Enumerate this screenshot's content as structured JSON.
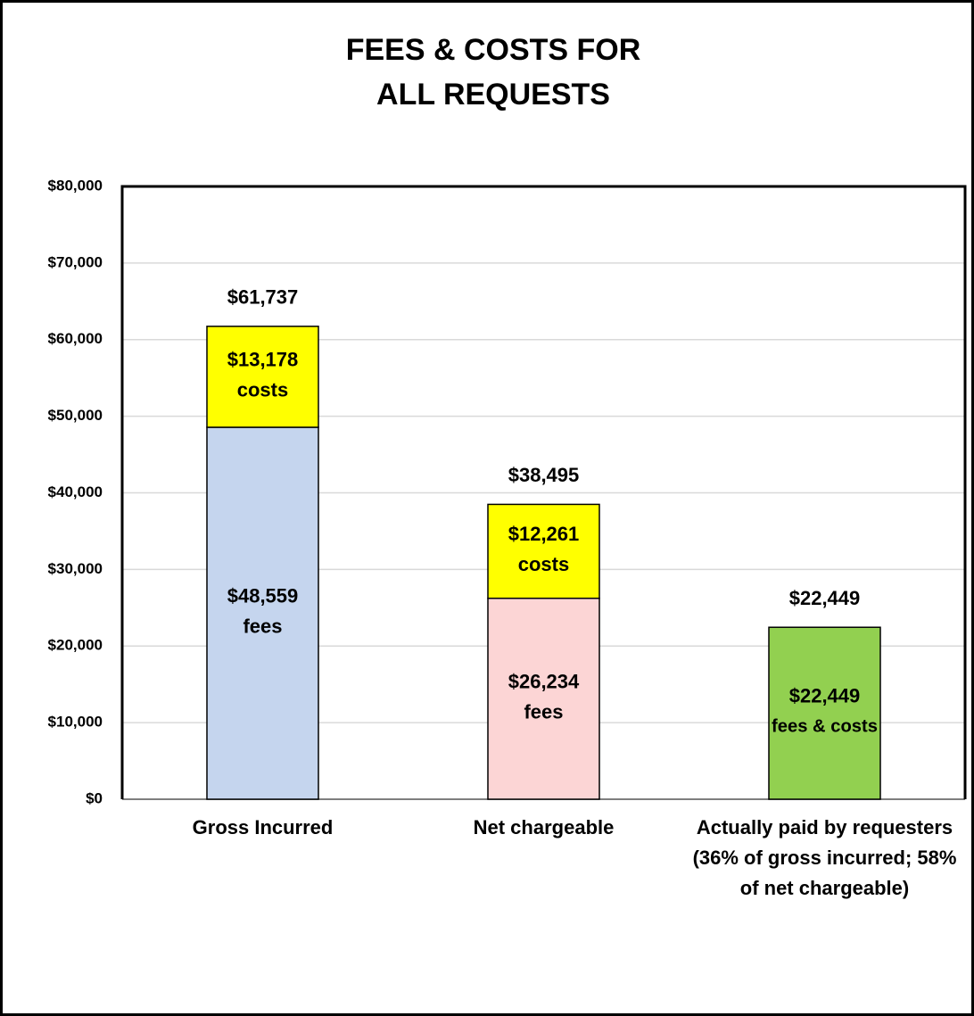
{
  "chart_data": {
    "type": "stacked_bar",
    "title": [
      "FEES & COSTS FOR",
      "ALL REQUESTS"
    ],
    "categories": [
      "Gross Incurred",
      "Net chargeable",
      "Actually paid by requesters (36% of gross incurred; 58% of net chargeable)"
    ],
    "series": [
      {
        "name": "fees",
        "colors": [
          "#c5d5ee",
          "#fcd5d5",
          null
        ],
        "values": [
          48559,
          26234,
          null
        ],
        "value_labels": [
          "$48,559",
          "$26,234",
          null
        ]
      },
      {
        "name": "costs",
        "color": "#ffff00",
        "values": [
          13178,
          12261,
          null
        ],
        "value_labels": [
          "$13,178",
          "$12,261",
          null
        ]
      },
      {
        "name": "fees & costs",
        "color": "#92d050",
        "values": [
          null,
          null,
          22449
        ],
        "value_labels": [
          null,
          null,
          "$22,449"
        ]
      }
    ],
    "totals": {
      "values": [
        61737,
        38495,
        22449
      ],
      "value_labels": [
        "$61,737",
        "$38,495",
        "$22,449"
      ]
    },
    "ylim": [
      0,
      80000
    ],
    "yticks": [
      {
        "value": 0,
        "label": "$0"
      },
      {
        "value": 10000,
        "label": "$10,000"
      },
      {
        "value": 20000,
        "label": "$20,000"
      },
      {
        "value": 30000,
        "label": "$30,000"
      },
      {
        "value": 40000,
        "label": "$40,000"
      },
      {
        "value": 50000,
        "label": "$50,000"
      },
      {
        "value": 60000,
        "label": "$60,000"
      },
      {
        "value": 70000,
        "label": "$70,000"
      },
      {
        "value": 80000,
        "label": "$80,000"
      }
    ],
    "grid": true
  }
}
